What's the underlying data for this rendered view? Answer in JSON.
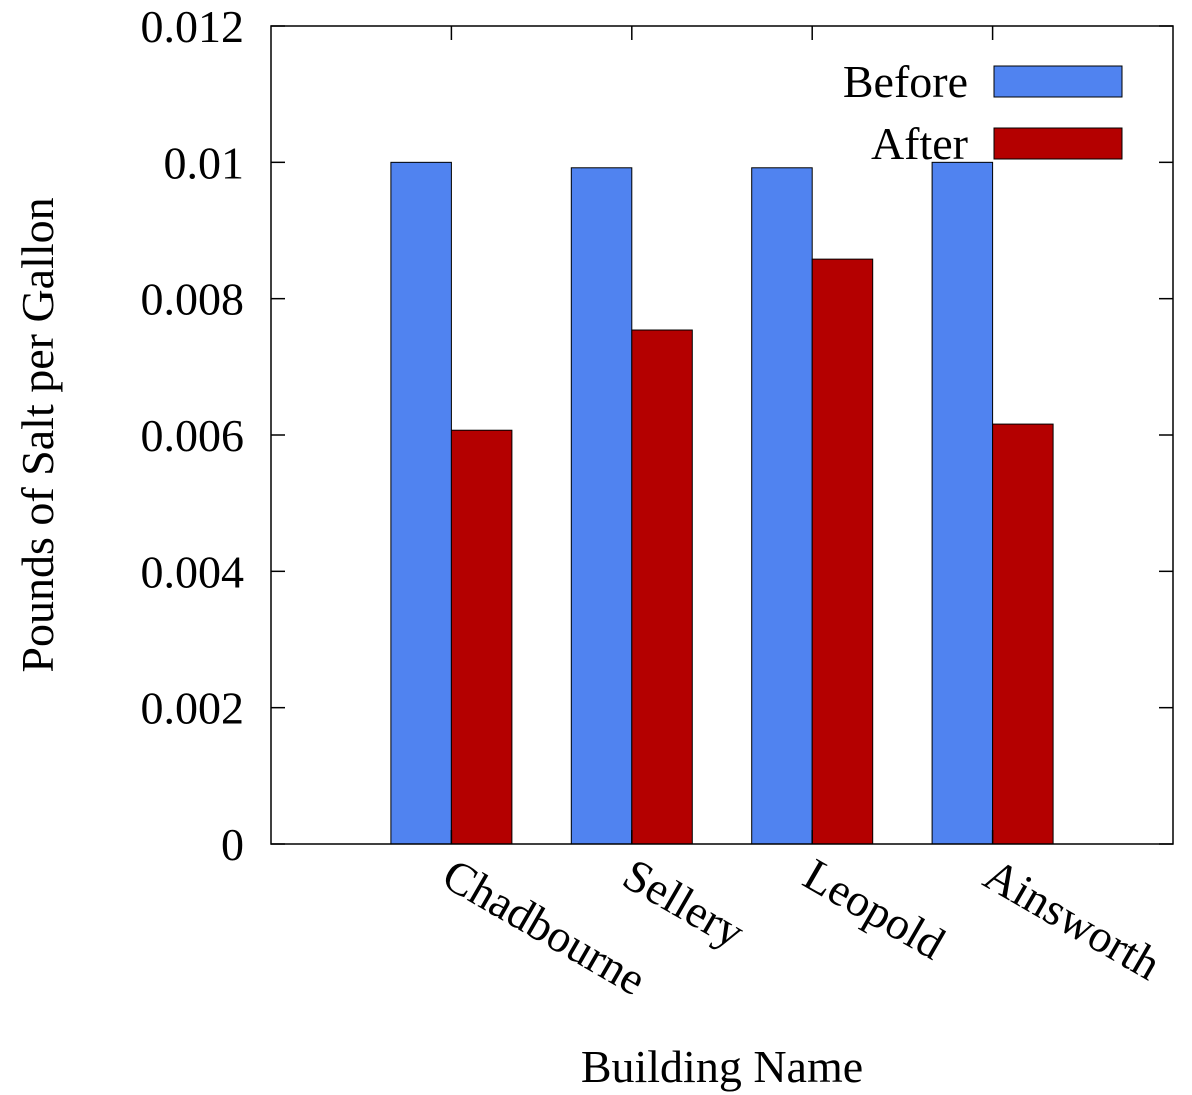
{
  "chart_data": {
    "type": "bar",
    "title": "",
    "xlabel": "Building Name",
    "ylabel": "Pounds of Salt per Gallon",
    "categories": [
      "Chadbourne",
      "Sellery",
      "Leopold",
      "Ainsworth"
    ],
    "series": [
      {
        "name": "Before",
        "color": "#5083f0",
        "values": [
          0.01,
          0.00992,
          0.00992,
          0.01
        ]
      },
      {
        "name": "After",
        "color": "#b40000",
        "values": [
          0.00607,
          0.00754,
          0.00858,
          0.00616
        ]
      }
    ],
    "ylim": [
      0,
      0.012
    ],
    "yticks": [
      0,
      0.002,
      0.004,
      0.006,
      0.008,
      0.01,
      0.012
    ],
    "ytick_labels": [
      "0",
      "0.002",
      "0.004",
      "0.006",
      "0.008",
      "0.01",
      "0.012"
    ],
    "grid": false,
    "legend_position": "top-right"
  }
}
